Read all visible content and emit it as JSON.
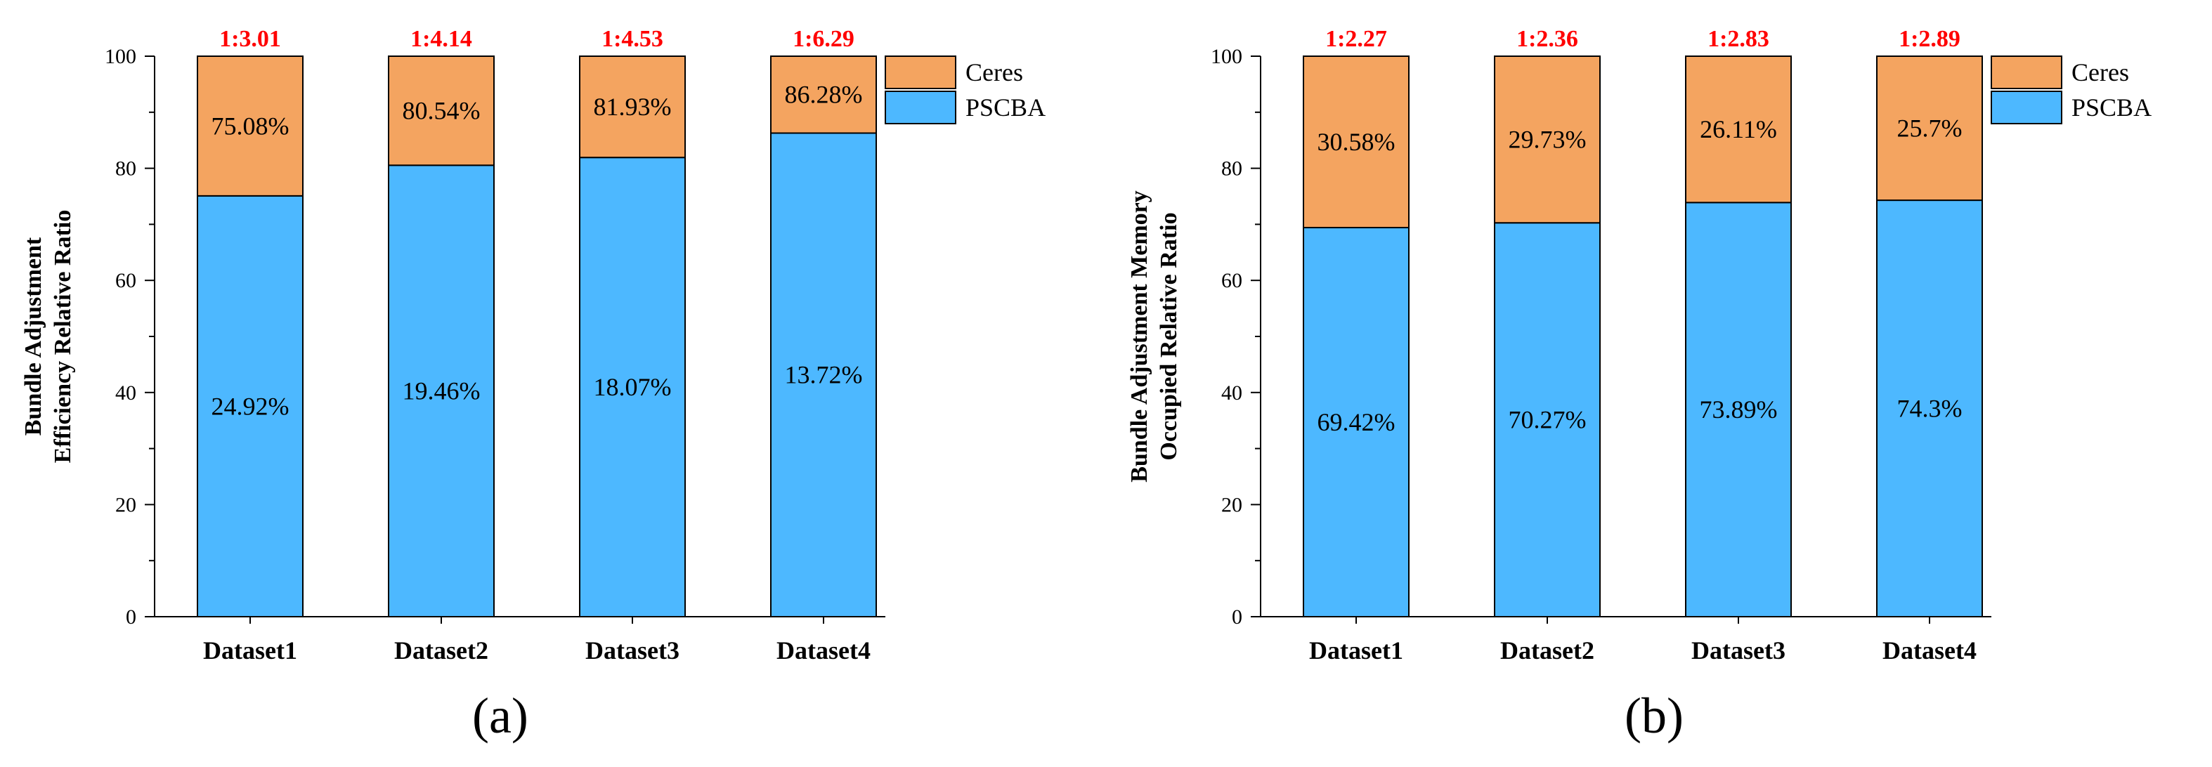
{
  "colors": {
    "ceres": "#F4A460",
    "pscba": "#4DB8FF",
    "ratio_label": "#FF0000",
    "axis": "#000000"
  },
  "captions": [
    "(a)",
    "(b)"
  ],
  "chart_data": [
    {
      "type": "bar",
      "stacked": true,
      "panel": "(a)",
      "categories": [
        "Dataset1",
        "Dataset2",
        "Dataset3",
        "Dataset4"
      ],
      "series": [
        {
          "name": "PSCBA",
          "values": [
            75.08,
            80.54,
            81.93,
            86.28
          ]
        },
        {
          "name": "Ceres",
          "values": [
            24.92,
            19.46,
            18.07,
            13.72
          ]
        }
      ],
      "in_bar_labels": {
        "upper": [
          "75.08%",
          "80.54%",
          "81.93%",
          "86.28%"
        ],
        "lower": [
          "24.92%",
          "19.46%",
          "18.07%",
          "13.72%"
        ]
      },
      "ratio_labels": [
        "1:3.01",
        "1:4.14",
        "1:4.53",
        "1:6.29"
      ],
      "ylabel_lines": [
        "Bundle Adjustment",
        "Efficiency Relative Ratio"
      ],
      "xlabel": "",
      "ylim": [
        0,
        100
      ],
      "yticks": [
        0,
        20,
        40,
        60,
        80,
        100
      ],
      "legend": [
        "Ceres",
        "PSCBA"
      ],
      "legend_position": "top-right"
    },
    {
      "type": "bar",
      "stacked": true,
      "panel": "(b)",
      "categories": [
        "Dataset1",
        "Dataset2",
        "Dataset3",
        "Dataset4"
      ],
      "series": [
        {
          "name": "PSCBA",
          "values": [
            69.42,
            70.27,
            73.89,
            74.3
          ]
        },
        {
          "name": "Ceres",
          "values": [
            30.58,
            29.73,
            26.11,
            25.7
          ]
        }
      ],
      "in_bar_labels": {
        "upper": [
          "30.58%",
          "29.73%",
          "26.11%",
          "25.7%"
        ],
        "lower": [
          "69.42%",
          "70.27%",
          "73.89%",
          "74.3%"
        ]
      },
      "ratio_labels": [
        "1:2.27",
        "1:2.36",
        "1:2.83",
        "1:2.89"
      ],
      "ylabel_lines": [
        "Bundle Adjustment Memory",
        "Occupied Relative Ratio"
      ],
      "xlabel": "",
      "ylim": [
        0,
        100
      ],
      "yticks": [
        0,
        20,
        40,
        60,
        80,
        100
      ],
      "legend": [
        "Ceres",
        "PSCBA"
      ],
      "legend_position": "top-right"
    }
  ]
}
